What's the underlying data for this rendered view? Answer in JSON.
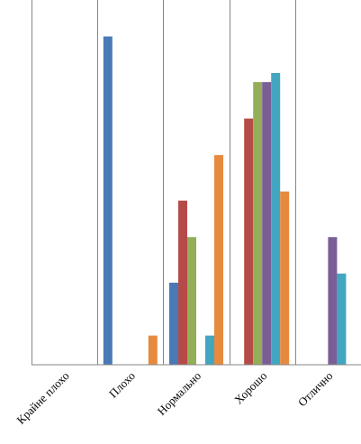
{
  "chart_data": {
    "type": "bar",
    "categories": [
      "Крайне плохо",
      "Плохо",
      "Нормально",
      "Хорошо",
      "Отлично"
    ],
    "series": [
      {
        "color": "#4a7ab5",
        "values": [
          0,
          9,
          2.25,
          0,
          0
        ]
      },
      {
        "color": "#b54b48",
        "values": [
          0,
          0,
          4.5,
          6.75,
          0
        ]
      },
      {
        "color": "#93ae57",
        "values": [
          0,
          0,
          3.5,
          7.75,
          0
        ]
      },
      {
        "color": "#7a5f97",
        "values": [
          0,
          0,
          0,
          7.75,
          3.5
        ]
      },
      {
        "color": "#42a6c1",
        "values": [
          0,
          0,
          0.8,
          8,
          2.5
        ]
      },
      {
        "color": "#e68b3e",
        "values": [
          0,
          0.8,
          5.75,
          4.75,
          0
        ]
      }
    ],
    "ylim": [
      0,
      10
    ],
    "grid": "vertical",
    "legend": "none"
  }
}
